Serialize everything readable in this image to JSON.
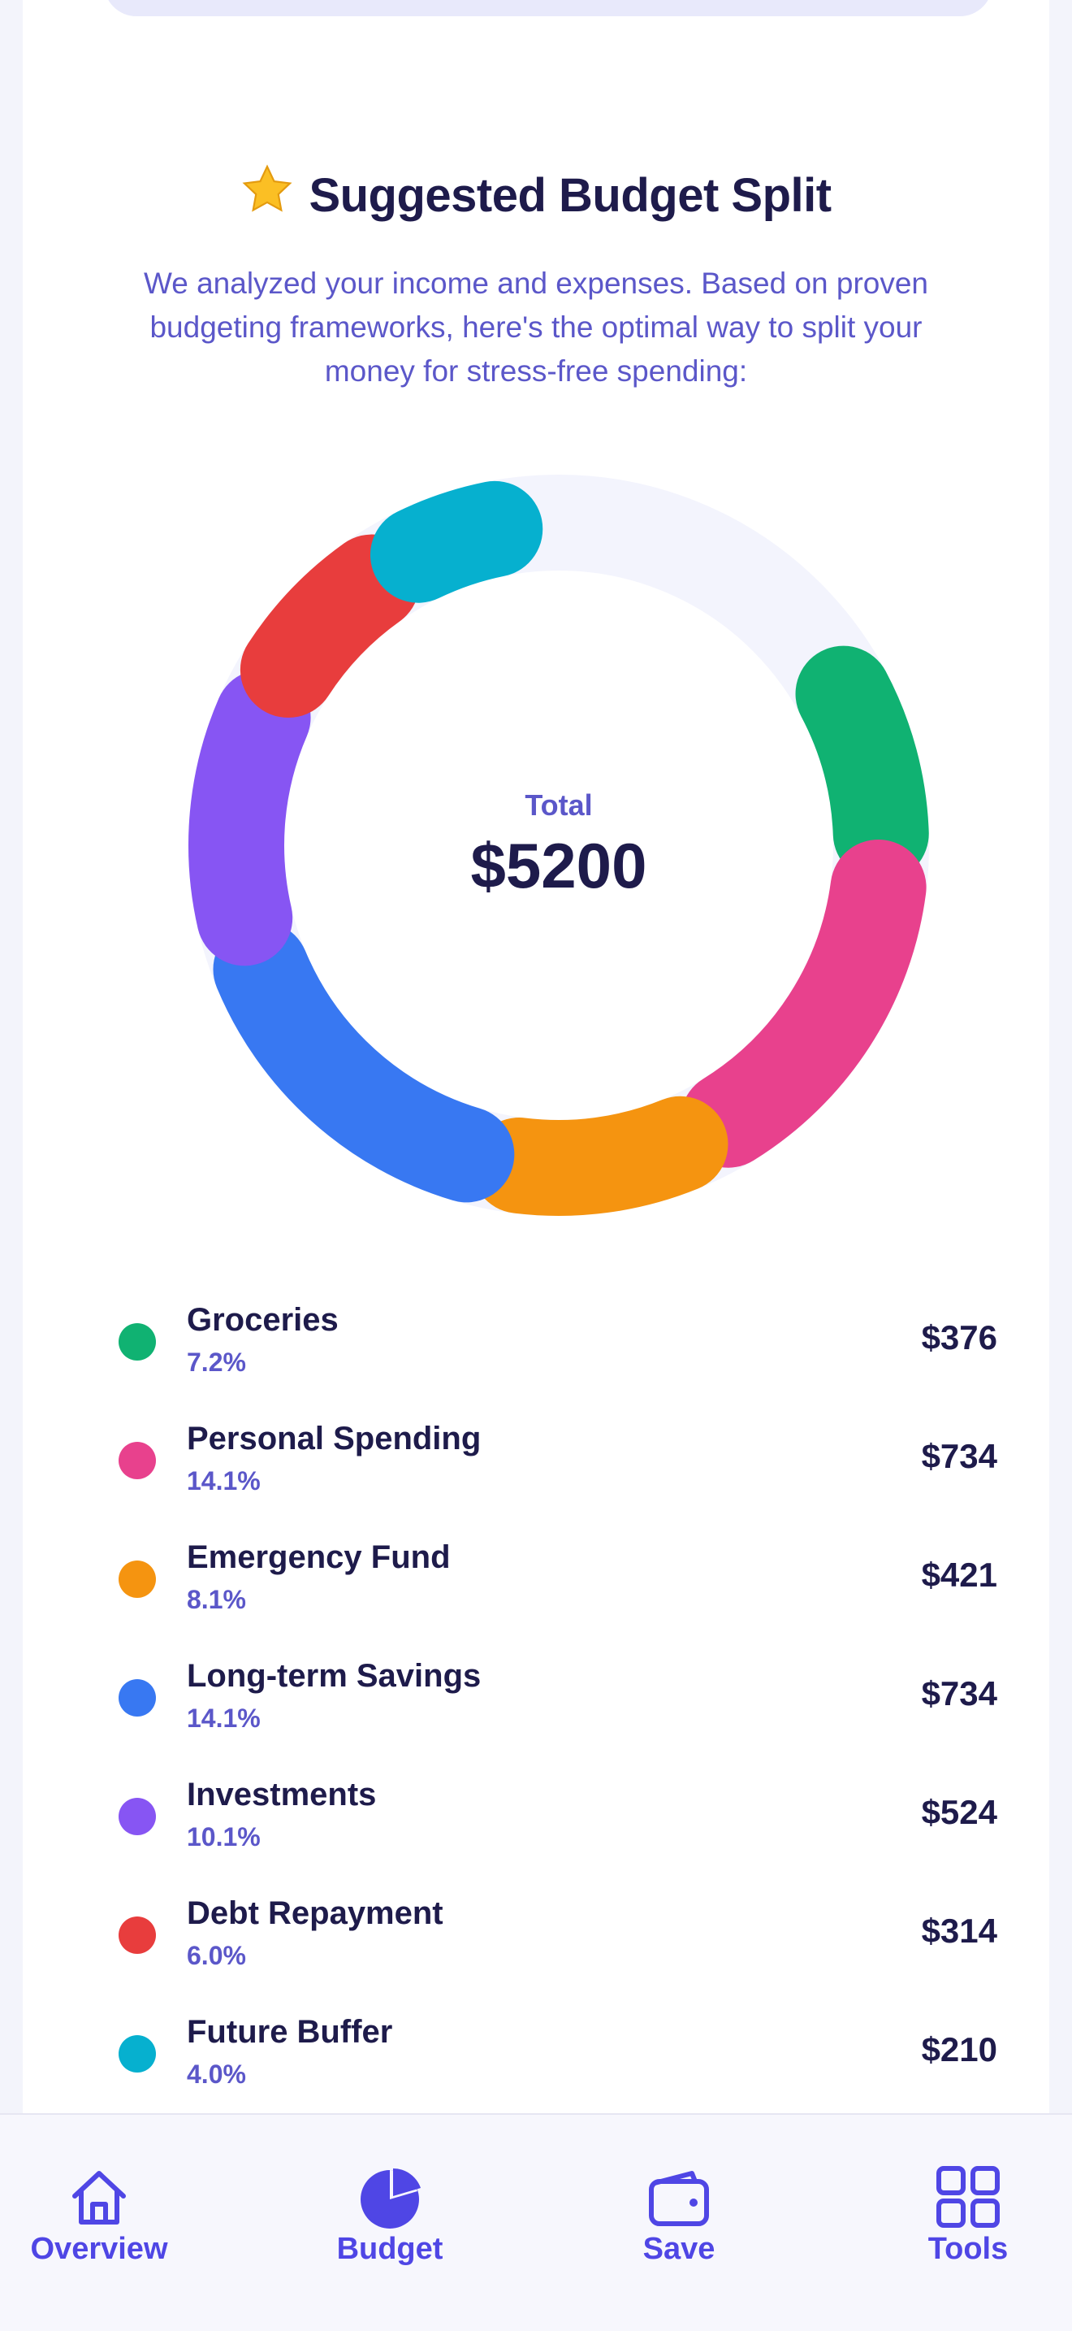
{
  "header": {
    "title": "Suggested Budget Split",
    "title_icon": "star-icon",
    "subtitle": "We analyzed your income and expenses. Based on proven budgeting frameworks, here's the optimal way to split your money for stress-free spending:"
  },
  "chart_data": {
    "type": "pie",
    "categories": [
      "Groceries",
      "Personal Spending",
      "Emergency Fund",
      "Long-term Savings",
      "Investments",
      "Debt Repayment",
      "Future Buffer"
    ],
    "values": [
      376,
      734,
      421,
      734,
      524,
      314,
      210
    ],
    "percentages": [
      7.2,
      14.1,
      8.1,
      14.1,
      10.1,
      6.0,
      4.0
    ],
    "colors": [
      "#10b272",
      "#e8418d",
      "#f59410",
      "#3878f2",
      "#8755f3",
      "#e83d3d",
      "#06b0cf"
    ],
    "center_label": "Total",
    "center_value": "$5200"
  },
  "legend": [
    {
      "name": "Groceries",
      "pct": "7.2%",
      "amount": "$376",
      "color": "#10b272"
    },
    {
      "name": "Personal Spending",
      "pct": "14.1%",
      "amount": "$734",
      "color": "#e8418d"
    },
    {
      "name": "Emergency Fund",
      "pct": "8.1%",
      "amount": "$421",
      "color": "#f59410"
    },
    {
      "name": "Long-term Savings",
      "pct": "14.1%",
      "amount": "$734",
      "color": "#3878f2"
    },
    {
      "name": "Investments",
      "pct": "10.1%",
      "amount": "$524",
      "color": "#8755f3"
    },
    {
      "name": "Debt Repayment",
      "pct": "6.0%",
      "amount": "$314",
      "color": "#e83d3d"
    },
    {
      "name": "Future Buffer",
      "pct": "4.0%",
      "amount": "$210",
      "color": "#06b0cf"
    }
  ],
  "tabbar": {
    "tabs": [
      {
        "label": "Overview",
        "icon": "home-icon",
        "active": false
      },
      {
        "label": "Budget",
        "icon": "pie-chart-icon",
        "active": true
      },
      {
        "label": "Save",
        "icon": "wallet-icon",
        "active": false
      },
      {
        "label": "Tools",
        "icon": "grid-icon",
        "active": false
      }
    ]
  },
  "colors": {
    "accent": "#4f46e5",
    "text_dark": "#1e1b4b",
    "text_accent": "#5b57c9"
  }
}
